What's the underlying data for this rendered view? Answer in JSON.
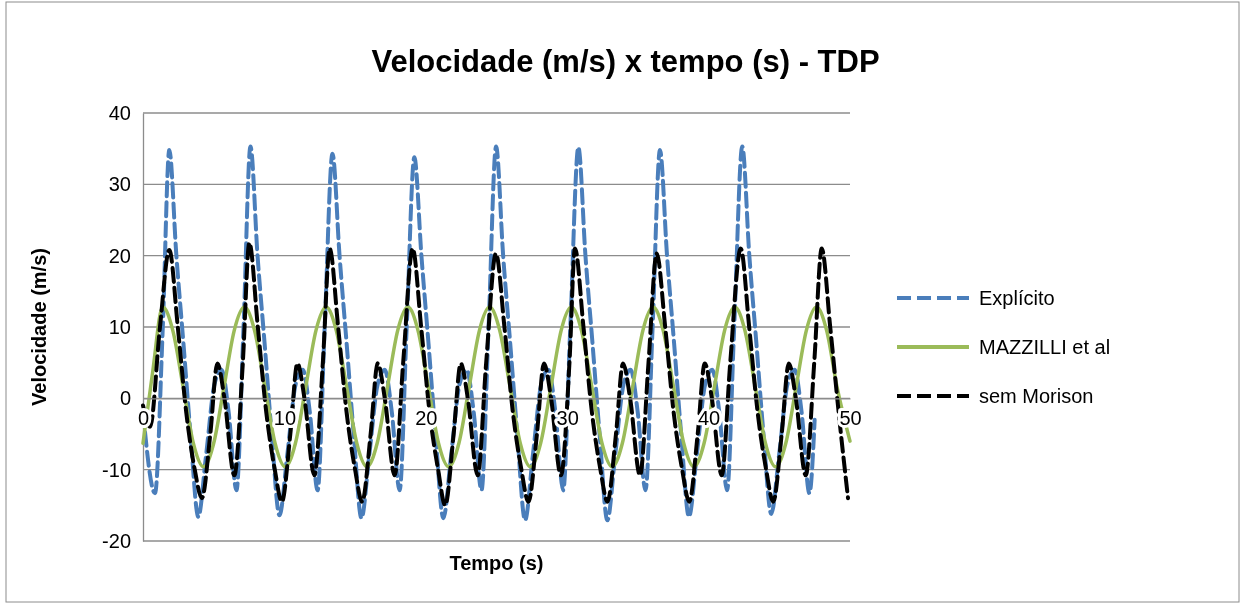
{
  "chart_data": {
    "type": "line",
    "title": "Velocidade (m/s) x tempo (s) - TDP",
    "xlabel": "Tempo (s)",
    "ylabel": "Velocidade (m/s)",
    "xlim": [
      0,
      50
    ],
    "xticks": [
      0,
      10,
      20,
      30,
      40,
      50
    ],
    "ylim": [
      -20,
      40
    ],
    "yticks": [
      -20,
      -10,
      0,
      10,
      20,
      30,
      40
    ],
    "grid": "y",
    "legend": "right",
    "series": [
      {
        "name": "Explícito",
        "color": "#4a7ebb",
        "line_style": "dashed",
        "x": [
          0,
          0.85,
          1.4,
          1.86,
          2.36,
          2.86,
          3.36,
          3.91,
          4.46,
          5.06,
          5.56,
          6.06,
          6.61,
          7.11,
          7.6,
          8.1,
          8.6,
          9.1,
          9.65,
          10.2,
          10.8,
          11.3,
          11.8,
          12.35,
          12.85,
          13.4,
          13.9,
          14.4,
          14.9,
          15.45,
          16.0,
          16.6,
          17.1,
          17.6,
          18.15,
          18.65,
          19.19,
          19.69,
          20.19,
          20.69,
          21.24,
          21.79,
          22.39,
          22.89,
          23.39,
          23.94,
          24.44,
          24.97,
          25.47,
          25.97,
          26.47,
          27.02,
          27.57,
          28.17,
          28.67,
          29.17,
          29.72,
          30.22,
          30.79,
          31.29,
          31.79,
          32.29,
          32.84,
          33.39,
          33.99,
          34.49,
          34.99,
          35.54,
          36.04,
          36.56,
          37.06,
          37.56,
          38.06,
          38.61,
          39.16,
          39.76,
          40.26,
          40.76,
          41.31,
          41.81,
          42.38,
          42.88,
          43.38,
          43.88,
          44.43,
          44.98,
          45.58,
          46.08,
          46.58,
          47.13,
          47.5
        ],
        "values": [
          -1.9,
          -13.3,
          10,
          34.8,
          20,
          7.7,
          -5,
          -16.6,
          -8,
          2,
          4,
          -2,
          -12.9,
          10,
          35.3,
          20,
          7.7,
          -5,
          -16.4,
          -8,
          2,
          4,
          -2,
          -12.9,
          10,
          34.3,
          20,
          7.7,
          -5,
          -16.8,
          -8,
          2,
          4,
          -2,
          -12.9,
          10,
          33.8,
          20,
          7.7,
          -5,
          -16.8,
          -8,
          2,
          4,
          -2,
          -12.9,
          10,
          35.3,
          20,
          7.7,
          -5,
          -17.1,
          -8,
          2,
          4,
          -2,
          -12.9,
          10,
          35.2,
          20,
          7.7,
          -5,
          -17.1,
          -8,
          2,
          4,
          -2,
          -12.9,
          10,
          34.8,
          20,
          7.7,
          -5,
          -16.6,
          -8,
          2,
          4,
          -2,
          -12.9,
          10,
          35.3,
          20,
          7.7,
          -5,
          -16.2,
          -8,
          2,
          4,
          -2,
          -13.3,
          -3
        ]
      },
      {
        "name": "MAZZILLI et al",
        "color": "#9bbb59",
        "line_style": "solid",
        "x": [
          0,
          0.67,
          1.39,
          2.11,
          2.84,
          3.56,
          4.28,
          5.0,
          5.73,
          6.45,
          7.17,
          7.89,
          8.62,
          9.34,
          10.06,
          10.78,
          11.51,
          12.23,
          12.95,
          13.67,
          14.4,
          15.12,
          15.84,
          16.56,
          17.29,
          18.01,
          18.73,
          19.45,
          20.18,
          20.9,
          21.62,
          22.34,
          23.07,
          23.79,
          24.51,
          25.23,
          25.96,
          26.68,
          27.4,
          28.12,
          28.85,
          29.57,
          30.29,
          31.01,
          31.74,
          32.46,
          33.18,
          33.9,
          34.63,
          35.35,
          36.07,
          36.79,
          37.52,
          38.24,
          38.96,
          39.68,
          40.41,
          41.13,
          41.85,
          42.57,
          43.3,
          44.02,
          44.74,
          45.46,
          46.19,
          46.91,
          47.63,
          48.35,
          49.08,
          50
        ],
        "values": [
          -6.3,
          3.5,
          12.8,
          9.5,
          1.6,
          -6.3,
          -9.6,
          -6.3,
          1.6,
          9.5,
          12.8,
          9.5,
          1.6,
          -6.3,
          -9.6,
          -6.3,
          1.6,
          9.5,
          12.8,
          9.5,
          1.6,
          -6.3,
          -9.6,
          -6.3,
          1.6,
          9.5,
          12.8,
          9.5,
          1.6,
          -6.3,
          -9.6,
          -6.3,
          1.6,
          9.5,
          12.8,
          9.5,
          1.6,
          -6.3,
          -9.6,
          -6.3,
          1.6,
          9.5,
          12.8,
          9.5,
          1.6,
          -6.3,
          -9.6,
          -6.3,
          1.6,
          9.5,
          12.8,
          9.5,
          1.6,
          -6.3,
          -9.6,
          -6.3,
          1.6,
          9.5,
          12.8,
          9.5,
          1.6,
          -6.3,
          -9.6,
          -6.3,
          1.6,
          9.5,
          12.8,
          9.5,
          1.6,
          -6
        ]
      },
      {
        "name": "sem Morison",
        "color": "#000000",
        "line_style": "dashed",
        "x": [
          0,
          0.5,
          1.2,
          1.86,
          2.46,
          3.06,
          3.66,
          4.16,
          4.76,
          5.26,
          5.76,
          6.46,
          7.06,
          7.52,
          8.12,
          8.72,
          9.32,
          9.82,
          10.42,
          10.92,
          11.42,
          12.12,
          12.72,
          13.2,
          13.8,
          14.4,
          15.0,
          15.5,
          16.1,
          16.6,
          17.1,
          17.8,
          18.4,
          19.07,
          19.67,
          20.27,
          20.87,
          21.37,
          21.97,
          22.47,
          22.97,
          23.67,
          24.27,
          24.96,
          25.56,
          26.16,
          26.76,
          27.26,
          27.86,
          28.36,
          28.86,
          29.56,
          30.16,
          30.55,
          31.15,
          31.75,
          32.35,
          32.85,
          33.45,
          33.95,
          34.45,
          35.15,
          35.75,
          36.33,
          36.93,
          37.53,
          38.13,
          38.63,
          39.23,
          39.73,
          40.23,
          40.93,
          41.53,
          42.27,
          42.87,
          43.47,
          44.07,
          44.57,
          45.17,
          45.67,
          46.17,
          46.87,
          47.47,
          48.0,
          48.6,
          49.2,
          49.86
        ],
        "values": [
          -1,
          -4,
          10,
          20.8,
          10,
          -2,
          -10,
          -14,
          -5,
          4.9,
          0,
          -10.8,
          5,
          21.8,
          10,
          -2,
          -10,
          -14.5,
          -5,
          4.9,
          0,
          -10.8,
          5,
          21,
          10,
          -2,
          -10,
          -14.5,
          -5,
          4.9,
          0,
          -10.8,
          5,
          21,
          10,
          -2,
          -10,
          -15,
          -5,
          4.9,
          0,
          -10.8,
          5,
          20.3,
          10,
          -2,
          -10,
          -14.5,
          -5,
          4.9,
          0,
          -10.8,
          5,
          21,
          10,
          -2,
          -10,
          -14.5,
          -5,
          4.9,
          0,
          -10.8,
          5,
          20.3,
          10,
          -2,
          -10,
          -14.5,
          -5,
          4.9,
          0,
          -10.8,
          5,
          21,
          10,
          -2,
          -10,
          -14.5,
          -5,
          4.9,
          0,
          -10.8,
          5,
          21,
          10,
          -2,
          -14
        ]
      }
    ]
  }
}
